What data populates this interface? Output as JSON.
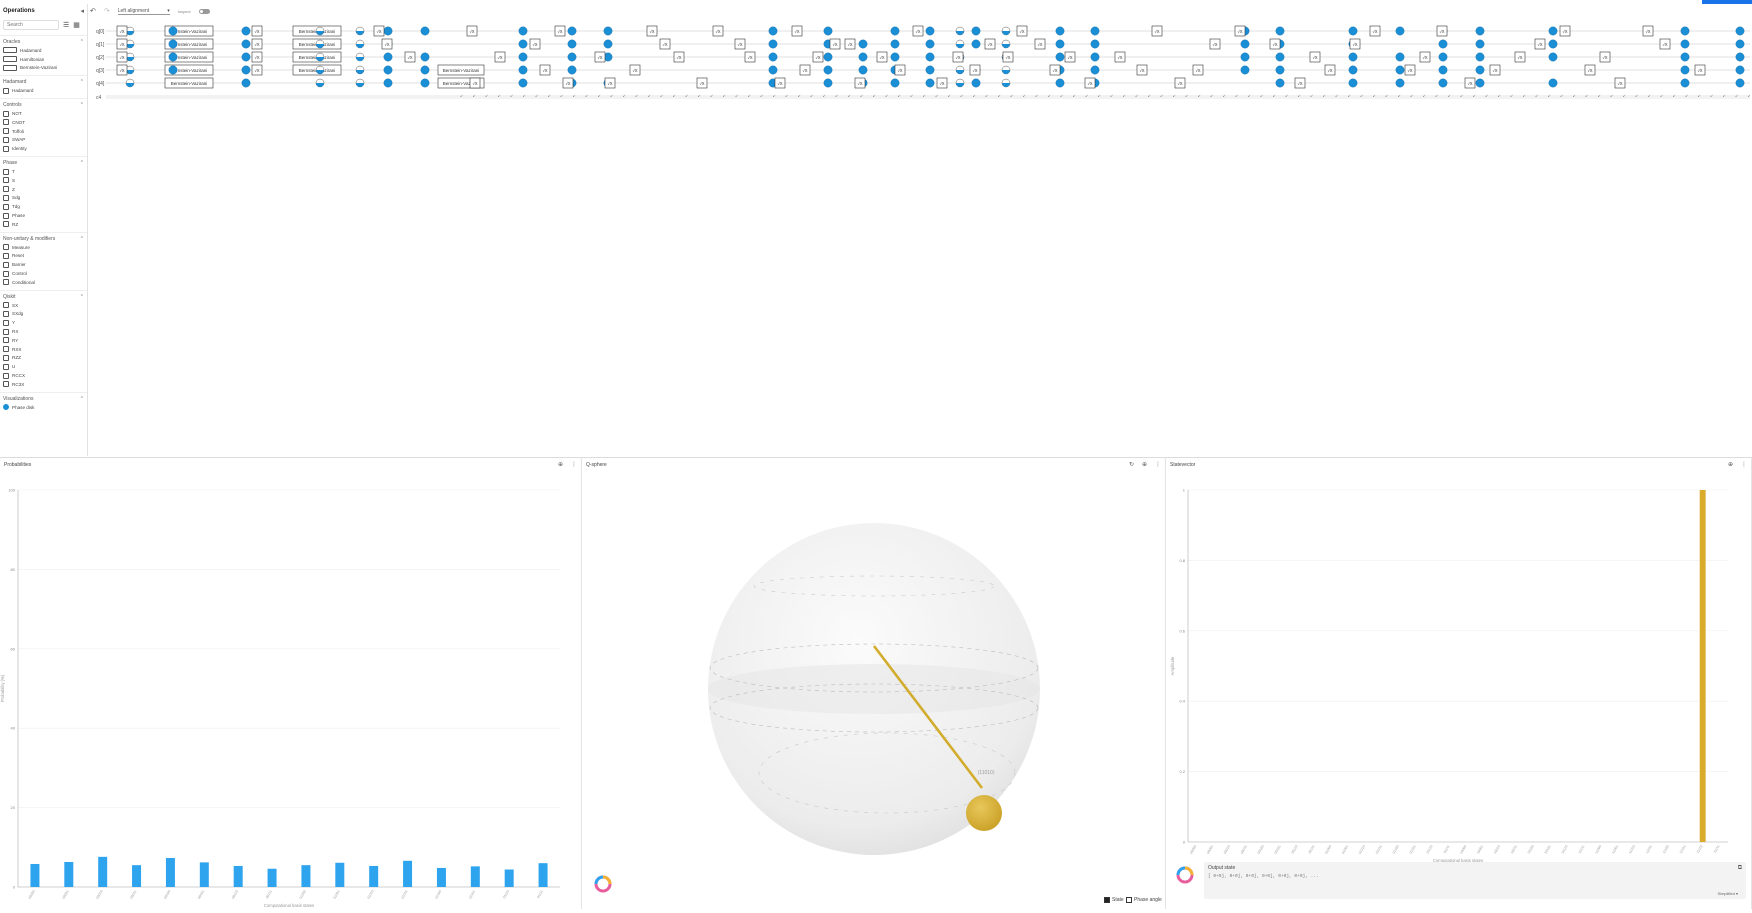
{
  "colors": {
    "accent": "#1a73e8",
    "gate_blue": "#1b8fd6",
    "prob_bar": "#2ea4ef",
    "statevector_bar": "#d9ab2a",
    "sphere_vector": "#d2ac2c"
  },
  "sidebar": {
    "title": "Operations",
    "search_placeholder": "Search",
    "sections": [
      {
        "name": "Oracles",
        "items": [
          {
            "label": "Hadamard",
            "icon": "oracle-icon"
          },
          {
            "label": "Hamiltonian",
            "icon": "oracle-icon"
          },
          {
            "label": "Bernstein-Vazirani",
            "icon": "oracle-icon"
          }
        ]
      },
      {
        "name": "Hadamard",
        "items": [
          {
            "label": "Hadamard",
            "icon": "h-gate-icon"
          }
        ]
      },
      {
        "name": "Controls",
        "items": [
          {
            "label": "NOT",
            "icon": "not-icon"
          },
          {
            "label": "CNOT",
            "icon": "cnot-icon"
          },
          {
            "label": "Toffoli",
            "icon": "toffoli-icon"
          },
          {
            "label": "SWAP",
            "icon": "swap-icon"
          },
          {
            "label": "Identity",
            "icon": "identity-icon"
          }
        ]
      },
      {
        "name": "Phase",
        "items": [
          {
            "label": "T",
            "icon": "t-icon"
          },
          {
            "label": "S",
            "icon": "s-icon"
          },
          {
            "label": "Z",
            "icon": "z-icon"
          },
          {
            "label": "Sdg",
            "icon": "sdg-icon"
          },
          {
            "label": "Tdg",
            "icon": "tdg-icon"
          },
          {
            "label": "Phase",
            "icon": "phase-icon"
          },
          {
            "label": "RZ",
            "icon": "rz-icon"
          }
        ]
      },
      {
        "name": "Non-unitary & modifiers",
        "items": [
          {
            "label": "Measure",
            "icon": "measure-icon"
          },
          {
            "label": "Reset",
            "icon": "reset-icon"
          },
          {
            "label": "Barrier",
            "icon": "barrier-icon"
          },
          {
            "label": "Control",
            "icon": "control-icon"
          },
          {
            "label": "Conditional",
            "icon": "conditional-icon"
          }
        ]
      },
      {
        "name": "Qiskit",
        "items": [
          {
            "label": "SX",
            "icon": "sx-icon"
          },
          {
            "label": "SXdg",
            "icon": "sxdg-icon"
          },
          {
            "label": "Y",
            "icon": "y-icon"
          },
          {
            "label": "RX",
            "icon": "rx-icon"
          },
          {
            "label": "RY",
            "icon": "ry-icon"
          },
          {
            "label": "RXX",
            "icon": "rxx-icon"
          },
          {
            "label": "RZZ",
            "icon": "rzz-icon"
          },
          {
            "label": "U",
            "icon": "u-icon"
          },
          {
            "label": "RCCX",
            "icon": "rccx-icon"
          },
          {
            "label": "RC3X",
            "icon": "rc3x-icon"
          }
        ]
      },
      {
        "name": "Visualizations",
        "items": [
          {
            "label": "Phase disk",
            "icon": "phase-disk-icon"
          }
        ]
      }
    ]
  },
  "toolbar": {
    "alignment": "Left alignment",
    "inspect_label": "Inspect"
  },
  "circuit": {
    "qubits": [
      "q[0]",
      "q[1]",
      "q[2]",
      "q[3]",
      "q[4]"
    ],
    "classical": "c4",
    "oracle_label": "Bernstein-Vazirani",
    "gate_labels": [
      "√X",
      "√X",
      "RX",
      "RY",
      "RZZ",
      "RXX",
      "U",
      "H"
    ]
  },
  "probabilities": {
    "title": "Probabilities",
    "ylabel": "Probability (%)",
    "xlabel": "Computational basis states"
  },
  "qsphere": {
    "title": "Q-sphere",
    "state_label": "|11010⟩",
    "legend": {
      "state": "State",
      "phase_angle": "Phase angle"
    }
  },
  "statevector": {
    "title": "Statevector",
    "ylabel": "Amplitude",
    "xlabel": "Computational basis states",
    "output_title": "Output state",
    "output_value": "[ 0+0j, 0+0j, 0+0j, 0+0j, 0+0j, 0+0j, ...",
    "output_format": "Simplified"
  },
  "chart_data": [
    {
      "type": "bar",
      "title": "Probabilities",
      "ylabel": "Probability (%)",
      "xlabel": "Computational basis states",
      "ylim": [
        0,
        100
      ],
      "yticks": [
        0,
        20,
        40,
        60,
        80,
        100
      ],
      "categories": [
        "00000",
        "00001",
        "00010",
        "00011",
        "00100",
        "00101",
        "00110",
        "00111",
        "01000",
        "01001",
        "01010",
        "01011",
        "01100",
        "01101",
        "01110",
        "01111"
      ],
      "values": [
        5.8,
        6.3,
        7.6,
        5.5,
        7.3,
        6.2,
        5.3,
        4.6,
        5.5,
        6.1,
        5.3,
        6.6,
        4.8,
        5.2,
        4.4,
        6.0
      ]
    },
    {
      "type": "bar",
      "title": "Statevector",
      "ylabel": "Amplitude",
      "xlabel": "Computational basis states",
      "ylim": [
        0,
        1.0
      ],
      "yticks": [
        0,
        0.2,
        0.4,
        0.6,
        0.8,
        1.0
      ],
      "categories": [
        "00000",
        "00001",
        "00010",
        "00011",
        "00100",
        "00101",
        "00110",
        "00111",
        "01000",
        "01001",
        "01010",
        "01011",
        "01100",
        "01101",
        "01110",
        "01111",
        "10000",
        "10001",
        "10010",
        "10011",
        "10100",
        "10101",
        "10110",
        "10111",
        "11000",
        "11001",
        "11010",
        "11011",
        "11100",
        "11101",
        "11110",
        "11111"
      ],
      "values": [
        0,
        0,
        0,
        0,
        0,
        0,
        0,
        0,
        0,
        0,
        0,
        0,
        0,
        0,
        0,
        0,
        0,
        0,
        0,
        0,
        0,
        0,
        0,
        0,
        0,
        0,
        0,
        0,
        0,
        0,
        1.0,
        0
      ]
    }
  ]
}
